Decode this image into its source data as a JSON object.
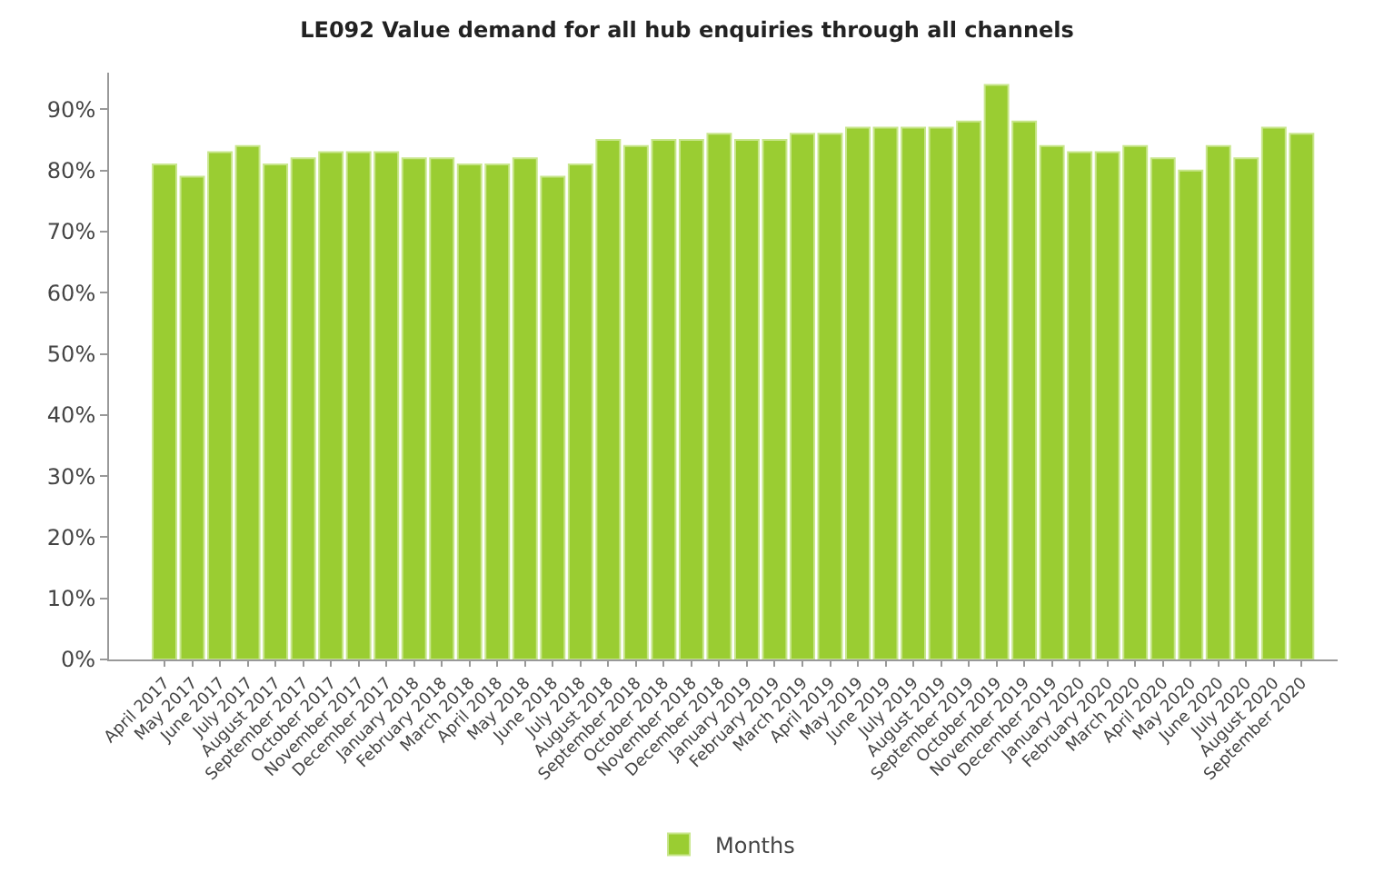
{
  "chart_data": {
    "type": "bar",
    "title": "LE092 Value demand for all hub enquiries through all channels",
    "categories": [
      "April 2017",
      "May 2017",
      "June 2017",
      "July 2017",
      "August 2017",
      "September 2017",
      "October 2017",
      "November 2017",
      "December 2017",
      "January 2018",
      "February 2018",
      "March 2018",
      "April 2018",
      "May 2018",
      "June 2018",
      "July 2018",
      "August 2018",
      "September 2018",
      "October 2018",
      "November 2018",
      "December 2018",
      "January 2019",
      "February 2019",
      "March 2019",
      "April 2019",
      "May 2019",
      "June 2019",
      "July 2019",
      "August 2019",
      "September 2019",
      "October 2019",
      "November 2019",
      "December 2019",
      "January 2020",
      "February 2020",
      "March 2020",
      "April 2020",
      "May 2020",
      "June 2020",
      "July 2020",
      "August 2020",
      "September 2020"
    ],
    "series": [
      {
        "name": "Months",
        "color": "#9acd32",
        "values": [
          81,
          79,
          83,
          84,
          81,
          82,
          83,
          83,
          83,
          82,
          82,
          81,
          81,
          82,
          79,
          81,
          85,
          84,
          85,
          85,
          86,
          85,
          85,
          86,
          86,
          87,
          87,
          87,
          87,
          88,
          94,
          88,
          84,
          83,
          83,
          84,
          82,
          80,
          84,
          82,
          87,
          86
        ]
      }
    ],
    "ylim": [
      0,
      96
    ],
    "yticks": [
      {
        "value": 0,
        "label": "0%"
      },
      {
        "value": 10,
        "label": "10%"
      },
      {
        "value": 20,
        "label": "20%"
      },
      {
        "value": 30,
        "label": "30%"
      },
      {
        "value": 40,
        "label": "40%"
      },
      {
        "value": 50,
        "label": "50%"
      },
      {
        "value": 60,
        "label": "60%"
      },
      {
        "value": 70,
        "label": "70%"
      },
      {
        "value": 80,
        "label": "80%"
      },
      {
        "value": 90,
        "label": "90%"
      }
    ],
    "legend": "bottom"
  }
}
